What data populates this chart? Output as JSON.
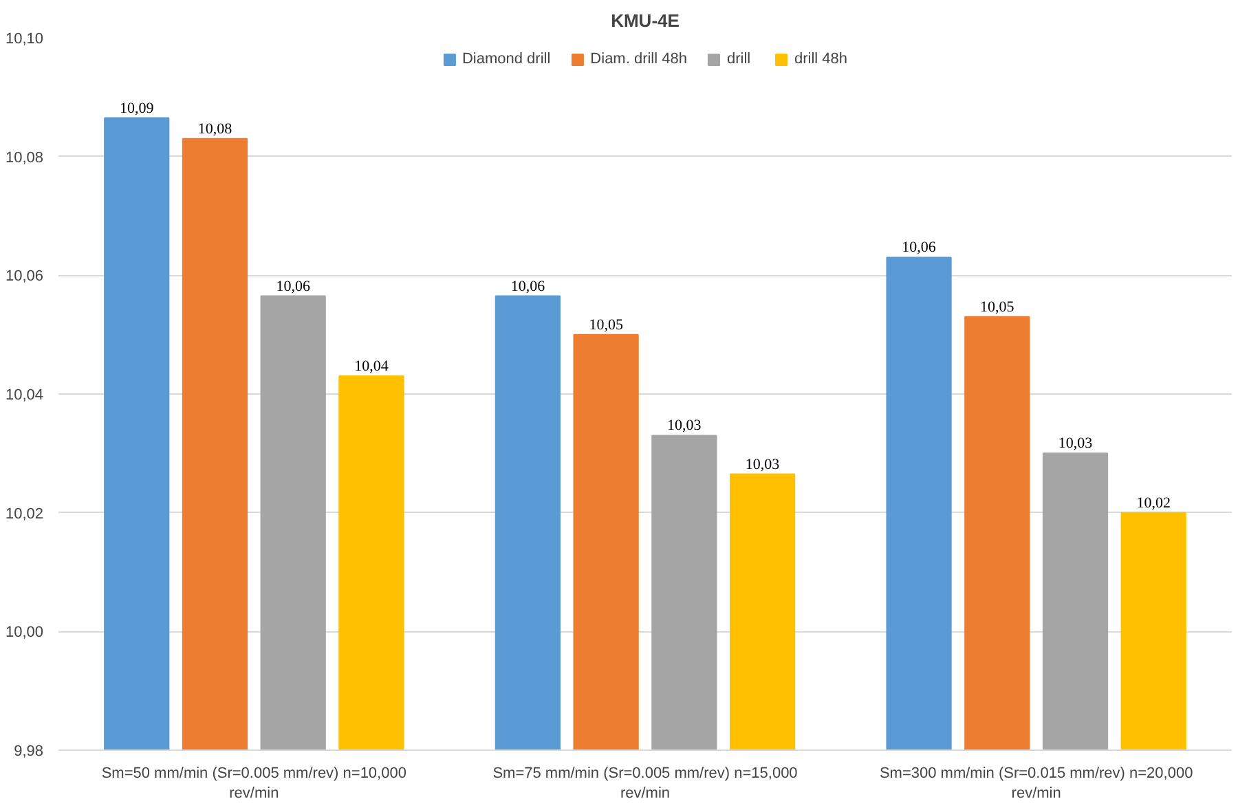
{
  "chart_data": {
    "type": "bar",
    "title": "KMU-4E",
    "categories": [
      "Sm=50 mm/min (Sr=0.005 mm/rev) n=10,000 rev/min",
      "Sm=75 mm/min (Sr=0.005 mm/rev) n=15,000 rev/min",
      "Sm=300 mm/min (Sr=0.015 mm/rev) n=20,000 rev/min"
    ],
    "series": [
      {
        "name": "Diamond drill",
        "color": "#5b9bd5",
        "values": [
          10.0865,
          10.0565,
          10.063
        ],
        "value_labels": [
          "10,09",
          "10,06",
          "10,06"
        ]
      },
      {
        "name": "Diam. drill 48h",
        "color": "#ed7d31",
        "values": [
          10.083,
          10.05,
          10.053
        ],
        "value_labels": [
          "10,08",
          "10,05",
          "10,05"
        ]
      },
      {
        "name": "drill",
        "color": "#a5a5a5",
        "values": [
          10.0565,
          10.033,
          10.03
        ],
        "value_labels": [
          "10,06",
          "10,03",
          "10,03"
        ]
      },
      {
        "name": "drill 48h",
        "color": "#ffc000",
        "values": [
          10.043,
          10.0265,
          10.02
        ],
        "value_labels": [
          "10,04",
          "10,03",
          "10,02"
        ]
      }
    ],
    "ylim": [
      9.98,
      10.1
    ],
    "yticks": [
      {
        "value": 9.98,
        "label": "9,98"
      },
      {
        "value": 10.0,
        "label": "10,00"
      },
      {
        "value": 10.02,
        "label": "10,02"
      },
      {
        "value": 10.04,
        "label": "10,04"
      },
      {
        "value": 10.06,
        "label": "10,06"
      },
      {
        "value": 10.08,
        "label": "10,08"
      },
      {
        "value": 10.1,
        "label": "10,10"
      }
    ],
    "grid": "y",
    "legend": "top"
  }
}
